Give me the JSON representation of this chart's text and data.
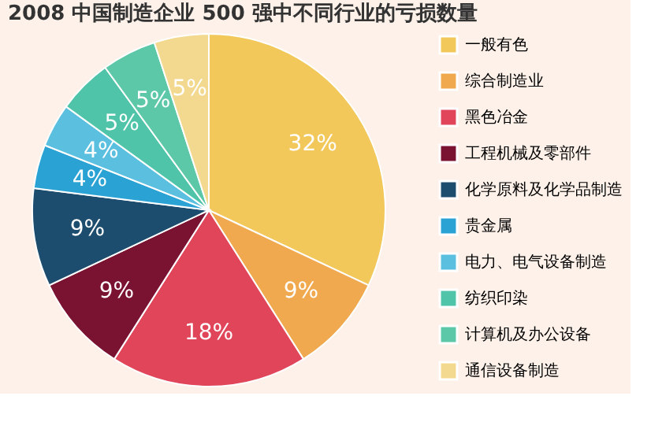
{
  "chart_data": {
    "type": "pie",
    "title": "2008 中国制造企业 500 强中不同行业的亏损数量",
    "categories": [
      "一般有色",
      "综合制造业",
      "黑色冶金",
      "工程机械及零部件",
      "化学原料及化学品制造",
      "贵金属",
      "电力、电气设备制造",
      "纺织印染",
      "计算机及办公设备",
      "通信设备制造"
    ],
    "values": [
      32,
      9,
      18,
      9,
      9,
      4,
      4,
      5,
      5,
      5
    ],
    "value_labels": [
      "32%",
      "9%",
      "18%",
      "9%",
      "9%",
      "4%",
      "4%",
      "5%",
      "5%",
      "5%"
    ],
    "colors": [
      "#f3c85a",
      "#f0a94e",
      "#e0455a",
      "#7a1232",
      "#1d4d6e",
      "#2aa3d4",
      "#5bbfe0",
      "#4fc4a8",
      "#5cc8a8",
      "#f3d98f"
    ],
    "legend": "right"
  }
}
